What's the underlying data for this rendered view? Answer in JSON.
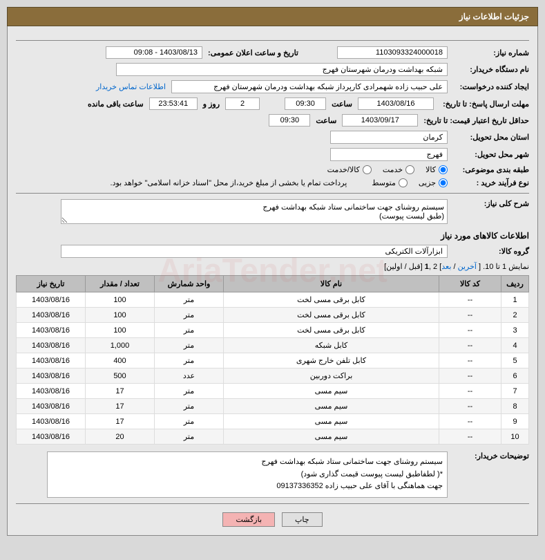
{
  "header": {
    "title": "جزئیات اطلاعات نیاز"
  },
  "fields": {
    "need_number_label": "شماره نیاز:",
    "need_number": "1103093324000018",
    "announce_label": "تاریخ و ساعت اعلان عمومی:",
    "announce_value": "1403/08/13 - 09:08",
    "buyer_org_label": "نام دستگاه خریدار:",
    "buyer_org": "شبکه بهداشت ودرمان شهرستان فهرج",
    "request_creator_label": "ایجاد کننده درخواست:",
    "request_creator": "علی حبیب زاده شهمرادی کارپرداز شبکه بهداشت ودرمان شهرستان فهرج",
    "contact_link": "اطلاعات تماس خریدار",
    "deadline_label": "مهلت ارسال پاسخ: تا تاریخ:",
    "deadline_date": "1403/08/16",
    "hour_label": "ساعت",
    "deadline_time": "09:30",
    "days_remaining": "2",
    "days_label": "روز و",
    "time_remaining": "23:53:41",
    "remaining_label": "ساعت باقی مانده",
    "validity_label": "حداقل تاریخ اعتبار قیمت: تا تاریخ:",
    "validity_date": "1403/09/17",
    "validity_time": "09:30",
    "province_label": "استان محل تحویل:",
    "province": "کرمان",
    "city_label": "شهر محل تحویل:",
    "city": "فهرج",
    "category_label": "طبقه بندی موضوعی:",
    "purchase_type_label": "نوع فرآیند خرید :",
    "treasury_note": "پرداخت تمام یا بخشی از مبلغ خرید،از محل \"اسناد خزانه اسلامی\" خواهد بود."
  },
  "categories": {
    "goods": "کالا",
    "service": "خدمت",
    "goods_service": "کالا/خدمت"
  },
  "purchase_types": {
    "minor": "جزیی",
    "medium": "متوسط"
  },
  "description": {
    "label": "شرح کلی نیاز:",
    "text": "سیستم روشنای جهت ساختمانی ستاد شبکه بهداشت فهرج\n(طبق لیست پیوست)"
  },
  "goods_info": {
    "title": "اطلاعات کالاهای مورد نیاز",
    "group_label": "گروه کالا:",
    "group_value": "ابزارآلات الکتریکی"
  },
  "pagination": {
    "text_prefix": "نمایش 1 تا 10. [ ",
    "last": "آخرین",
    "sep1": " / ",
    "next": "بعد",
    "mid": "] 2 ,",
    "current": "1",
    "suffix": " [قبل / اولین]"
  },
  "table": {
    "headers": {
      "row": "ردیف",
      "code": "کد کالا",
      "name": "نام کالا",
      "unit": "واحد شمارش",
      "qty": "تعداد / مقدار",
      "date": "تاریخ نیاز"
    },
    "rows": [
      {
        "row": "1",
        "code": "--",
        "name": "کابل برقی مسی لخت",
        "unit": "متر",
        "qty": "100",
        "date": "1403/08/16"
      },
      {
        "row": "2",
        "code": "--",
        "name": "کابل برقی مسی لخت",
        "unit": "متر",
        "qty": "100",
        "date": "1403/08/16"
      },
      {
        "row": "3",
        "code": "--",
        "name": "کابل برقی مسی لخت",
        "unit": "متر",
        "qty": "100",
        "date": "1403/08/16"
      },
      {
        "row": "4",
        "code": "--",
        "name": "کابل شبکه",
        "unit": "متر",
        "qty": "1,000",
        "date": "1403/08/16"
      },
      {
        "row": "5",
        "code": "--",
        "name": "کابل تلفن خارج شهری",
        "unit": "متر",
        "qty": "400",
        "date": "1403/08/16"
      },
      {
        "row": "6",
        "code": "--",
        "name": "براکت دوربین",
        "unit": "عدد",
        "qty": "500",
        "date": "1403/08/16"
      },
      {
        "row": "7",
        "code": "--",
        "name": "سیم مسی",
        "unit": "متر",
        "qty": "17",
        "date": "1403/08/16"
      },
      {
        "row": "8",
        "code": "--",
        "name": "سیم مسی",
        "unit": "متر",
        "qty": "17",
        "date": "1403/08/16"
      },
      {
        "row": "9",
        "code": "--",
        "name": "سیم مسی",
        "unit": "متر",
        "qty": "17",
        "date": "1403/08/16"
      },
      {
        "row": "10",
        "code": "--",
        "name": "سیم مسی",
        "unit": "متر",
        "qty": "20",
        "date": "1403/08/16"
      }
    ]
  },
  "buyer_desc": {
    "label": "توضیحات خریدار:",
    "line1": "سیستم روشنای جهت ساختمانی ستاد شبکه بهداشت فهرج",
    "line2": "*( لطفاطبق لیست پیوست قیمت گذاری شود)",
    "line3": "جهت هماهنگی با آقای علی حبیب زاده 09137336352"
  },
  "buttons": {
    "print": "چاپ",
    "back": "بازگشت"
  },
  "colors": {
    "header_bg": "#8a6d3b",
    "page_bg": "#d9d9d9",
    "content_bg": "#e8e8e8",
    "link": "#0066cc",
    "btn_back_bg": "#f4b3b3"
  }
}
